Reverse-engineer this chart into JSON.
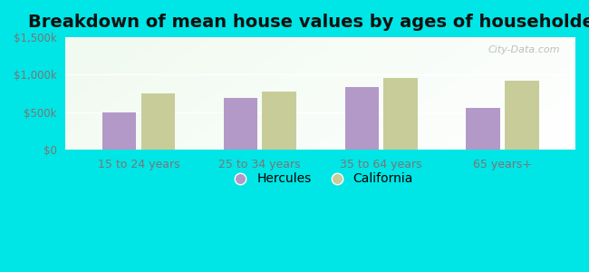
{
  "title": "Breakdown of mean house values by ages of householders",
  "categories": [
    "15 to 24 years",
    "25 to 34 years",
    "35 to 64 years",
    "65 years+"
  ],
  "hercules_values": [
    500000,
    690000,
    830000,
    560000
  ],
  "california_values": [
    750000,
    780000,
    960000,
    920000
  ],
  "hercules_color": "#b399c8",
  "california_color": "#c8cc99",
  "background_outer": "#00e5e5",
  "ylim": [
    0,
    1500000
  ],
  "yticks": [
    0,
    500000,
    1000000,
    1500000
  ],
  "ytick_labels": [
    "$0",
    "$500k",
    "$1,000k",
    "$1,500k"
  ],
  "bar_width": 0.28,
  "legend_hercules": "Hercules",
  "legend_california": "California",
  "title_fontsize": 14,
  "watermark": "City-Data.com"
}
